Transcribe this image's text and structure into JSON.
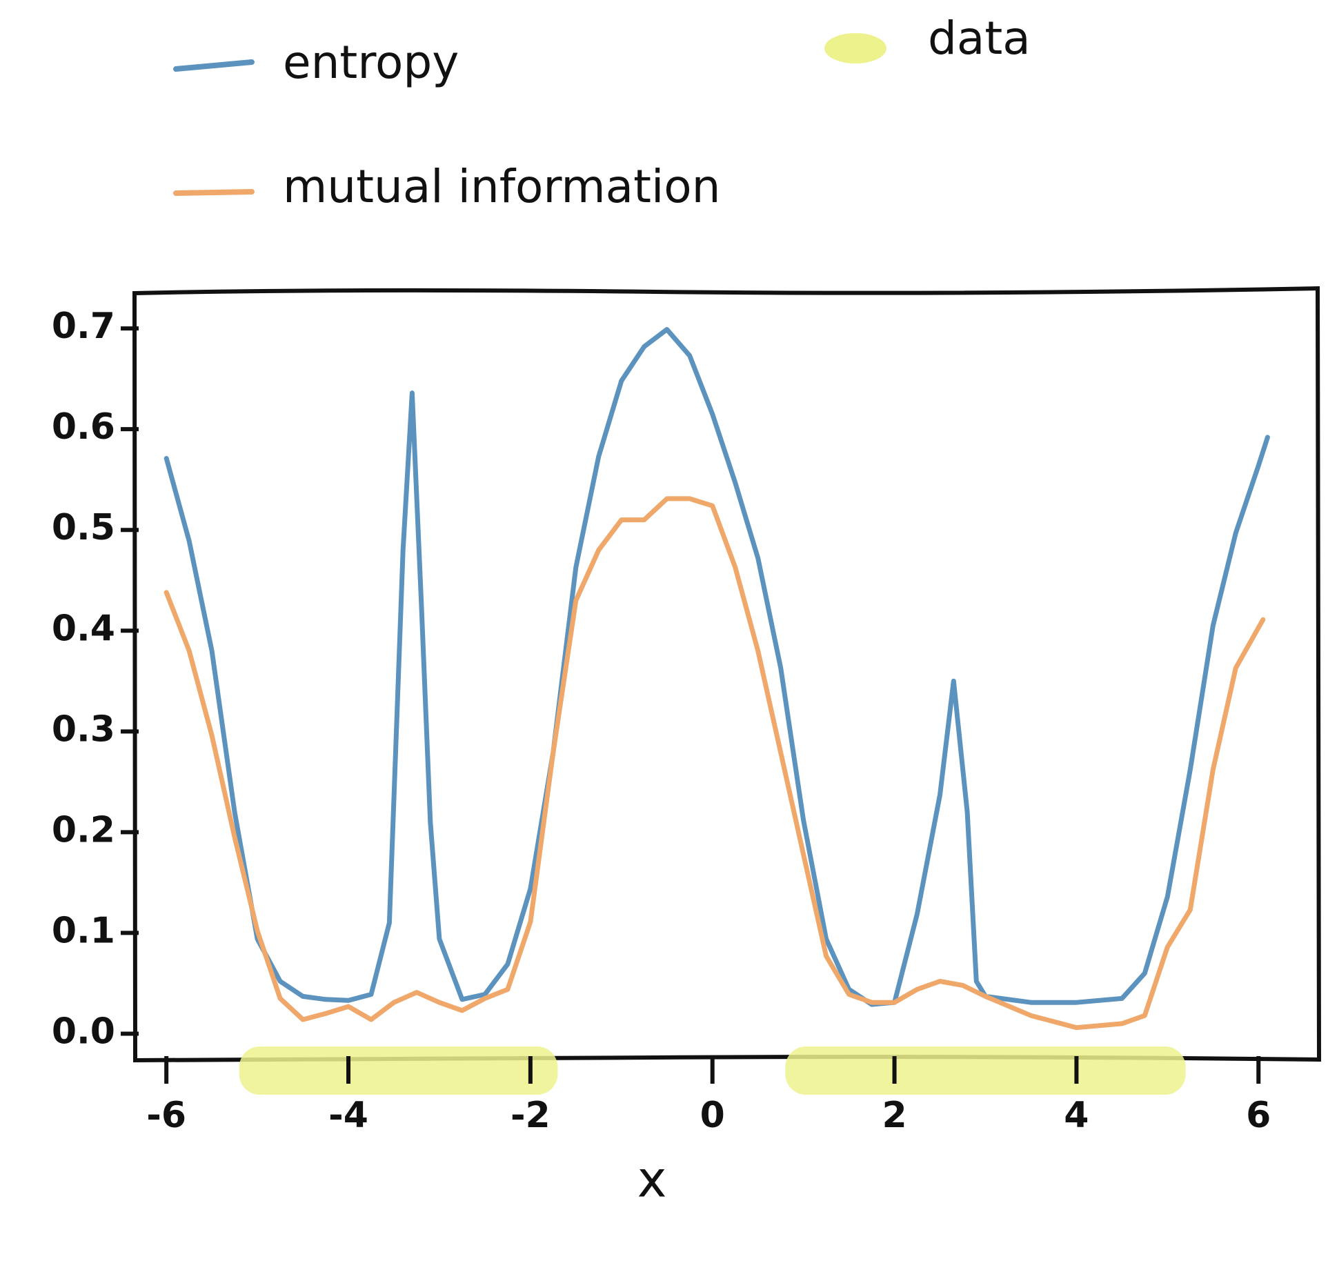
{
  "chart_data": {
    "type": "line",
    "xlabel": "x",
    "xlim": [
      -6.35,
      6.65
    ],
    "ylim": [
      -0.025,
      0.735
    ],
    "xticks": [
      -6,
      -4,
      -2,
      0,
      2,
      4,
      6
    ],
    "yticks": [
      {
        "value": 0,
        "label": "0.0"
      },
      {
        "value": 0.1,
        "label": "0.1"
      },
      {
        "value": 0.2,
        "label": "0.2"
      },
      {
        "value": 0.3,
        "label": "0.3"
      },
      {
        "value": 0.4,
        "label": "0.4"
      },
      {
        "value": 0.5,
        "label": "0.5"
      },
      {
        "value": 0.6,
        "label": "0.6"
      },
      {
        "value": 0.7,
        "label": "0.7"
      }
    ],
    "regions": {
      "name": "data",
      "color": "#eef28d",
      "ranges": [
        [
          -5.2,
          -1.7
        ],
        [
          0.8,
          5.2
        ]
      ]
    },
    "series": [
      {
        "name": "entropy",
        "color": "#5b93be",
        "x": [
          -6,
          -5.75,
          -5.5,
          -5.25,
          -5,
          -4.75,
          -4.5,
          -4.25,
          -4,
          -3.75,
          -3.55,
          -3.4,
          -3.3,
          -3.2,
          -3.1,
          -3,
          -2.75,
          -2.5,
          -2.25,
          -2,
          -1.75,
          -1.5,
          -1.25,
          -1,
          -0.75,
          -0.5,
          -0.25,
          0,
          0.25,
          0.5,
          0.75,
          1,
          1.25,
          1.5,
          1.75,
          2,
          2.25,
          2.5,
          2.65,
          2.8,
          2.9,
          3,
          3.5,
          4,
          4.5,
          4.75,
          5,
          5.25,
          5.5,
          5.75,
          6,
          6.1
        ],
        "values": [
          0.571,
          0.489,
          0.38,
          0.22,
          0.094,
          0.052,
          0.037,
          0.034,
          0.033,
          0.039,
          0.11,
          0.48,
          0.636,
          0.43,
          0.21,
          0.094,
          0.034,
          0.039,
          0.069,
          0.144,
          0.279,
          0.463,
          0.573,
          0.648,
          0.682,
          0.699,
          0.673,
          0.615,
          0.547,
          0.472,
          0.363,
          0.212,
          0.094,
          0.044,
          0.029,
          0.031,
          0.119,
          0.237,
          0.35,
          0.22,
          0.052,
          0.037,
          0.031,
          0.031,
          0.035,
          0.06,
          0.136,
          0.262,
          0.405,
          0.497,
          0.564,
          0.592
        ]
      },
      {
        "name": "mutual information",
        "color": "#efa76a",
        "x": [
          -6,
          -5.75,
          -5.5,
          -5.25,
          -5,
          -4.75,
          -4.5,
          -4.25,
          -4,
          -3.75,
          -3.5,
          -3.25,
          -3,
          -2.75,
          -2.5,
          -2.25,
          -2,
          -1.75,
          -1.5,
          -1.25,
          -1,
          -0.75,
          -0.5,
          -0.25,
          0,
          0.25,
          0.5,
          0.75,
          1,
          1.25,
          1.5,
          1.75,
          2,
          2.25,
          2.5,
          2.75,
          3,
          3.5,
          4,
          4.5,
          4.75,
          5,
          5.25,
          5.5,
          5.75,
          6.05
        ],
        "values": [
          0.438,
          0.38,
          0.296,
          0.195,
          0.102,
          0.035,
          0.014,
          0.02,
          0.027,
          0.014,
          0.031,
          0.041,
          0.031,
          0.023,
          0.035,
          0.044,
          0.111,
          0.279,
          0.43,
          0.48,
          0.51,
          0.51,
          0.531,
          0.531,
          0.524,
          0.463,
          0.38,
          0.279,
          0.178,
          0.077,
          0.039,
          0.031,
          0.031,
          0.044,
          0.052,
          0.048,
          0.037,
          0.018,
          0.006,
          0.01,
          0.018,
          0.086,
          0.123,
          0.262,
          0.363,
          0.411
        ]
      }
    ]
  }
}
